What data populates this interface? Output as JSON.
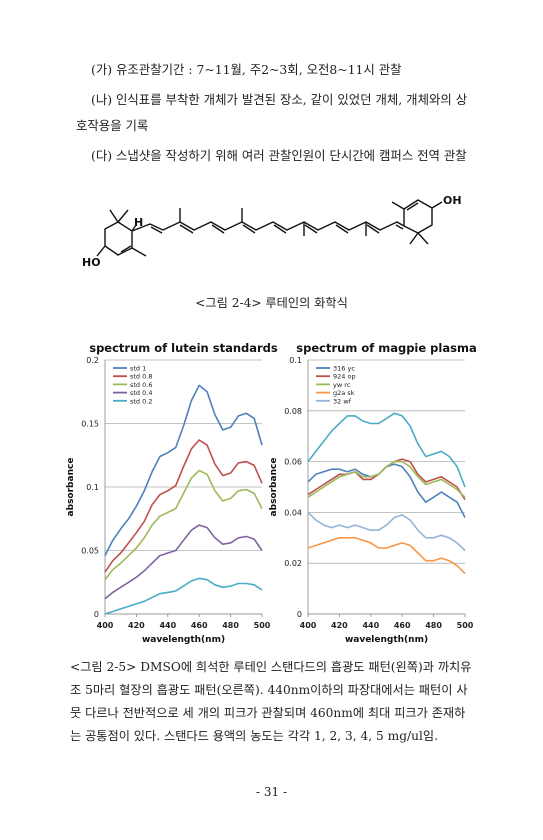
{
  "body_lines": [
    "(가) 유조관찰기간 : 7~11월, 주2~3회, 오전8~11시 관찰",
    "(나) 인식표를 부착한 개체가 발견된 장소, 같이 있었던 개체, 개체와의 상",
    "호작용을 기록",
    "(다) 스냅샷을 작성하기 위해 여러 관찰인원이 단시간에 캠퍼스 전역 관찰"
  ],
  "structure": {
    "label_h": "H",
    "label_oh": "OH",
    "label_ho": "HO"
  },
  "figure_2_4_caption": "<그림 2-4> 루테인의 화학식",
  "figure_2_5_caption": [
    "<그림 2-5> DMSO에 희석한 루테인 스탠다드의 흡광도 패턴(왼쪽)과 까치유",
    "조 5마리 혈장의 흡광도 패턴(오른쪽). 440nm이하의 파장대에서는 패턴이 사",
    "뭇 다르나 전반적으로 세 개의 피크가 관찰되며 460nm에 최대 피크가 존재하",
    "는 공통점이 있다. 스탠다드 용액의 농도는 각각 1, 2, 3, 4, 5 mg/ul임."
  ],
  "page_number": "- 31 -",
  "chart_data": [
    {
      "type": "line",
      "title": "spectrum of lutein standards",
      "xlabel": "wavelength(nm)",
      "ylabel": "absorbance",
      "xlim": [
        400,
        500
      ],
      "ylim": [
        0,
        0.2
      ],
      "xticks": [
        "400",
        "420",
        "440",
        "460",
        "480",
        "500"
      ],
      "yticks": [
        "0",
        "0.05",
        "0.1",
        "0.15",
        "0.2"
      ],
      "grid": "horizontal",
      "legend": "top-left",
      "x": [
        400,
        405,
        410,
        415,
        420,
        425,
        430,
        435,
        440,
        445,
        450,
        455,
        460,
        465,
        470,
        475,
        480,
        485,
        490,
        495,
        500
      ],
      "series": [
        {
          "name": "std 1",
          "color": "#4f81bd",
          "values": [
            0.046,
            0.058,
            0.067,
            0.075,
            0.085,
            0.097,
            0.112,
            0.124,
            0.127,
            0.131,
            0.148,
            0.168,
            0.18,
            0.175,
            0.157,
            0.145,
            0.147,
            0.156,
            0.158,
            0.154,
            0.133
          ]
        },
        {
          "name": "std 0.8",
          "color": "#c0504d",
          "values": [
            0.033,
            0.042,
            0.048,
            0.056,
            0.064,
            0.073,
            0.086,
            0.094,
            0.097,
            0.101,
            0.116,
            0.13,
            0.137,
            0.133,
            0.118,
            0.109,
            0.111,
            0.119,
            0.12,
            0.117,
            0.103
          ]
        },
        {
          "name": "std 0.6",
          "color": "#9bbb59",
          "values": [
            0.027,
            0.035,
            0.04,
            0.046,
            0.052,
            0.06,
            0.07,
            0.077,
            0.08,
            0.083,
            0.095,
            0.107,
            0.113,
            0.11,
            0.097,
            0.089,
            0.091,
            0.097,
            0.098,
            0.095,
            0.083
          ]
        },
        {
          "name": "std 0.4",
          "color": "#8064a2",
          "values": [
            0.012,
            0.017,
            0.021,
            0.025,
            0.029,
            0.034,
            0.04,
            0.046,
            0.048,
            0.05,
            0.058,
            0.066,
            0.07,
            0.068,
            0.06,
            0.055,
            0.056,
            0.06,
            0.061,
            0.059,
            0.05
          ]
        },
        {
          "name": "std 0.2",
          "color": "#4bacc6",
          "values": [
            0.0,
            0.002,
            0.004,
            0.006,
            0.008,
            0.01,
            0.013,
            0.016,
            0.017,
            0.018,
            0.022,
            0.026,
            0.028,
            0.027,
            0.023,
            0.021,
            0.022,
            0.024,
            0.024,
            0.023,
            0.019
          ]
        }
      ]
    },
    {
      "type": "line",
      "title": "spectrum of magpie plasma",
      "xlabel": "wavelength(nm)",
      "ylabel": "absorbance",
      "xlim": [
        400,
        500
      ],
      "ylim": [
        0,
        0.1
      ],
      "xticks": [
        "400",
        "420",
        "440",
        "460",
        "480",
        "500"
      ],
      "yticks": [
        "0",
        "0.02",
        "0.04",
        "0.06",
        "0.08",
        "0.1"
      ],
      "grid": "horizontal",
      "legend": "top-left",
      "x": [
        400,
        405,
        410,
        415,
        420,
        425,
        430,
        435,
        440,
        445,
        450,
        455,
        460,
        465,
        470,
        475,
        480,
        485,
        490,
        495,
        500
      ],
      "series": [
        {
          "name": "316 yc",
          "color": "#4f81bd",
          "values": [
            0.052,
            0.055,
            0.056,
            0.057,
            0.057,
            0.056,
            0.057,
            0.055,
            0.054,
            0.055,
            0.058,
            0.059,
            0.058,
            0.054,
            0.048,
            0.044,
            0.046,
            0.048,
            0.046,
            0.044,
            0.038
          ]
        },
        {
          "name": "924 op",
          "color": "#c0504d",
          "values": [
            0.047,
            0.049,
            0.051,
            0.053,
            0.055,
            0.055,
            0.056,
            0.053,
            0.053,
            0.055,
            0.058,
            0.06,
            0.061,
            0.06,
            0.055,
            0.052,
            0.053,
            0.054,
            0.052,
            0.05,
            0.045
          ]
        },
        {
          "name": "yw rc",
          "color": "#9bbb59",
          "values": [
            0.046,
            0.048,
            0.05,
            0.052,
            0.054,
            0.055,
            0.056,
            0.054,
            0.054,
            0.055,
            0.058,
            0.06,
            0.06,
            0.058,
            0.054,
            0.051,
            0.052,
            0.053,
            0.051,
            0.049,
            0.046
          ]
        },
        {
          "name": "g2a sk",
          "color": "#f79646",
          "values": [
            0.026,
            0.027,
            0.028,
            0.029,
            0.03,
            0.03,
            0.03,
            0.029,
            0.028,
            0.026,
            0.026,
            0.027,
            0.028,
            0.027,
            0.024,
            0.021,
            0.021,
            0.022,
            0.021,
            0.019,
            0.016
          ]
        },
        {
          "name": "32 wf",
          "color": "#95b3d7",
          "values": [
            0.04,
            0.037,
            0.035,
            0.034,
            0.035,
            0.034,
            0.035,
            0.034,
            0.033,
            0.033,
            0.035,
            0.038,
            0.039,
            0.037,
            0.033,
            0.03,
            0.03,
            0.031,
            0.03,
            0.028,
            0.025
          ]
        },
        {
          "name": "",
          "color": "#4bacc6",
          "values": [
            0.06,
            0.064,
            0.068,
            0.072,
            0.075,
            0.078,
            0.078,
            0.076,
            0.075,
            0.075,
            0.077,
            0.079,
            0.078,
            0.074,
            0.067,
            0.062,
            0.063,
            0.064,
            0.062,
            0.058,
            0.05
          ]
        }
      ]
    }
  ]
}
